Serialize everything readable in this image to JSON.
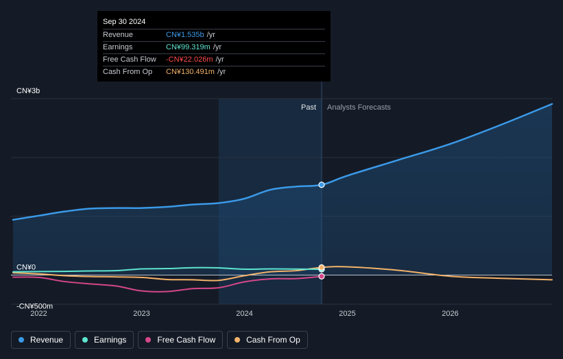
{
  "tooltip": {
    "date": "Sep 30 2024",
    "rows": [
      {
        "label": "Revenue",
        "value": "CN¥1.535b",
        "unit": "/yr",
        "color": "#3b9ae8"
      },
      {
        "label": "Earnings",
        "value": "CN¥99.319m",
        "unit": "/yr",
        "color": "#5ee6d0"
      },
      {
        "label": "Free Cash Flow",
        "value": "-CN¥22.026m",
        "unit": "/yr",
        "color": "#ff4d4f"
      },
      {
        "label": "Cash From Op",
        "value": "CN¥130.491m",
        "unit": "/yr",
        "color": "#f4b36a"
      }
    ]
  },
  "legend": [
    {
      "label": "Revenue",
      "color": "#3b9ae8"
    },
    {
      "label": "Earnings",
      "color": "#5ee6d0"
    },
    {
      "label": "Free Cash Flow",
      "color": "#d6478a"
    },
    {
      "label": "Cash From Op",
      "color": "#f4b36a"
    }
  ],
  "chart_data": {
    "type": "line",
    "y_axis_labels": [
      "CN¥3b",
      "CN¥0",
      "-CN¥500m"
    ],
    "ylim": [
      -500,
      3000
    ],
    "y_unit": "CN¥m",
    "x_tick_labels": [
      "2022",
      "2023",
      "2024",
      "2025",
      "2026"
    ],
    "xlim": [
      2021.73,
      2026.99
    ],
    "past_label": "Past",
    "forecast_label": "Analysts Forecasts",
    "divider_x": 2024.75,
    "shaded_past_start": 2023.75,
    "grid": true,
    "series": [
      {
        "name": "Revenue",
        "color": "#3b9ae8",
        "area": true,
        "points": [
          [
            2021.75,
            940
          ],
          [
            2022.0,
            1010
          ],
          [
            2022.25,
            1080
          ],
          [
            2022.5,
            1130
          ],
          [
            2022.75,
            1140
          ],
          [
            2023.0,
            1140
          ],
          [
            2023.25,
            1160
          ],
          [
            2023.5,
            1200
          ],
          [
            2023.75,
            1225
          ],
          [
            2024.0,
            1300
          ],
          [
            2024.25,
            1450
          ],
          [
            2024.5,
            1505
          ],
          [
            2024.75,
            1535
          ],
          [
            2025.0,
            1690
          ],
          [
            2025.5,
            1960
          ],
          [
            2026.0,
            2230
          ],
          [
            2026.5,
            2560
          ],
          [
            2026.99,
            2910
          ]
        ]
      },
      {
        "name": "Earnings",
        "color": "#5ee6d0",
        "area": false,
        "points": [
          [
            2021.75,
            55
          ],
          [
            2022.0,
            60
          ],
          [
            2022.25,
            62
          ],
          [
            2022.5,
            70
          ],
          [
            2022.75,
            75
          ],
          [
            2023.0,
            105
          ],
          [
            2023.25,
            110
          ],
          [
            2023.5,
            125
          ],
          [
            2023.75,
            122
          ],
          [
            2024.0,
            100
          ],
          [
            2024.25,
            105
          ],
          [
            2024.5,
            102
          ],
          [
            2024.75,
            99
          ]
        ]
      },
      {
        "name": "Free Cash Flow",
        "color": "#d6478a",
        "area": false,
        "points": [
          [
            2021.75,
            -35
          ],
          [
            2022.0,
            -40
          ],
          [
            2022.25,
            -110
          ],
          [
            2022.5,
            -150
          ],
          [
            2022.75,
            -185
          ],
          [
            2023.0,
            -270
          ],
          [
            2023.25,
            -280
          ],
          [
            2023.5,
            -230
          ],
          [
            2023.75,
            -215
          ],
          [
            2024.0,
            -115
          ],
          [
            2024.25,
            -65
          ],
          [
            2024.5,
            -60
          ],
          [
            2024.75,
            -22
          ]
        ]
      },
      {
        "name": "Cash From Op",
        "color": "#f4b36a",
        "area": false,
        "points": [
          [
            2021.75,
            40
          ],
          [
            2022.0,
            20
          ],
          [
            2022.25,
            -10
          ],
          [
            2022.5,
            -25
          ],
          [
            2022.75,
            -30
          ],
          [
            2023.0,
            -40
          ],
          [
            2023.25,
            -75
          ],
          [
            2023.5,
            -80
          ],
          [
            2023.75,
            -90
          ],
          [
            2024.0,
            -10
          ],
          [
            2024.25,
            55
          ],
          [
            2024.5,
            75
          ],
          [
            2024.75,
            130
          ],
          [
            2025.0,
            140
          ],
          [
            2025.5,
            80
          ],
          [
            2026.0,
            -20
          ],
          [
            2026.5,
            -55
          ],
          [
            2026.99,
            -80
          ]
        ]
      }
    ]
  }
}
